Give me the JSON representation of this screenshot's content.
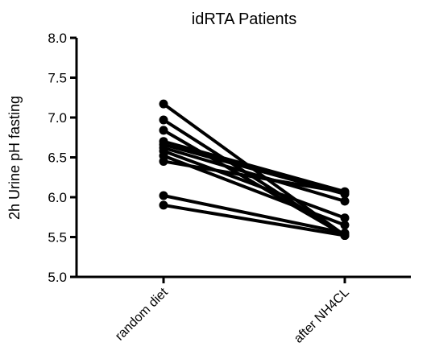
{
  "chart_data": {
    "type": "line",
    "title": "idRTA Patients",
    "xlabel": "",
    "ylabel": "2h Urine pH fasting",
    "categories": [
      "random diet",
      "after NH4CL"
    ],
    "ylim": [
      5.0,
      8.0
    ],
    "yticks": [
      "5.0",
      "5.5",
      "6.0",
      "6.5",
      "7.0",
      "7.5",
      "8.0"
    ],
    "grid": false,
    "legend": "none",
    "marker": "circle",
    "color": "#000000",
    "series": [
      {
        "values": [
          7.17,
          5.52
        ]
      },
      {
        "values": [
          6.97,
          5.52
        ]
      },
      {
        "values": [
          6.84,
          5.52
        ]
      },
      {
        "values": [
          6.7,
          6.07
        ]
      },
      {
        "values": [
          6.66,
          6.04
        ]
      },
      {
        "values": [
          6.62,
          5.95
        ]
      },
      {
        "values": [
          6.58,
          5.74
        ]
      },
      {
        "values": [
          6.52,
          5.65
        ]
      },
      {
        "values": [
          6.45,
          6.06
        ]
      },
      {
        "values": [
          6.02,
          5.55
        ]
      },
      {
        "values": [
          5.9,
          5.52
        ]
      }
    ]
  }
}
